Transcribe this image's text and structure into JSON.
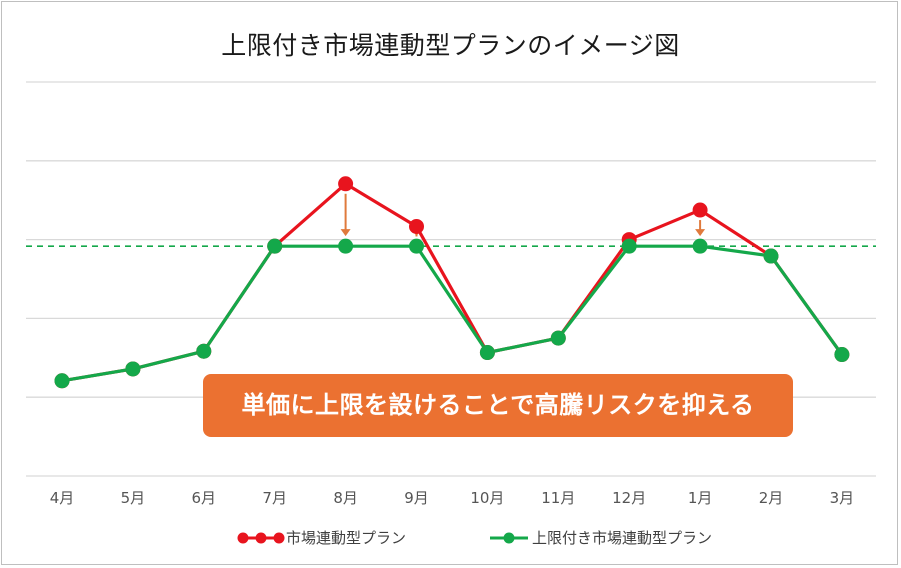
{
  "chart_data": {
    "type": "line",
    "title": "上限付き市場連動型プランのイメージ図",
    "categories": [
      "4月",
      "5月",
      "6月",
      "7月",
      "8月",
      "9月",
      "10月",
      "11月",
      "12月",
      "1月",
      "2月",
      "3月"
    ],
    "series": [
      {
        "name": "市場連動型プラン",
        "color": "#e8141e",
        "values": [
          1.45,
          1.63,
          1.9,
          3.5,
          4.45,
          3.8,
          1.88,
          2.1,
          3.6,
          4.05,
          3.35,
          1.85
        ]
      },
      {
        "name": "上限付き市場連動型プラン",
        "color": "#14a84a",
        "values": [
          1.45,
          1.63,
          1.9,
          3.5,
          3.5,
          3.5,
          1.88,
          2.1,
          3.5,
          3.5,
          3.35,
          1.85
        ]
      }
    ],
    "cap_value": 3.5,
    "cap_color": "#14a84a",
    "arrow_color": "#e07a3c",
    "ylim": [
      0,
      6
    ],
    "grid": true,
    "legend": "bottom",
    "annotation": "単価に上限を設けることで高騰リスクを抑える"
  }
}
